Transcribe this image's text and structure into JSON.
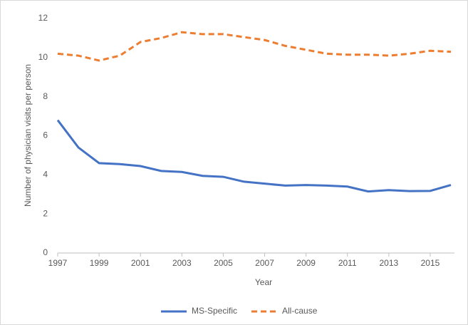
{
  "chart_data": {
    "type": "line",
    "x_label": "Year",
    "y_label": "Number of physician visits per person",
    "x": [
      1997,
      1998,
      1999,
      2000,
      2001,
      2002,
      2003,
      2004,
      2005,
      2006,
      2007,
      2008,
      2009,
      2010,
      2011,
      2012,
      2013,
      2014,
      2015,
      2016
    ],
    "series": [
      {
        "name": "MS-Specific",
        "color": "#4472c4",
        "style": "solid",
        "values": [
          6.8,
          5.4,
          4.6,
          4.55,
          4.45,
          4.2,
          4.15,
          3.95,
          3.9,
          3.65,
          3.55,
          3.45,
          3.48,
          3.45,
          3.4,
          3.15,
          3.22,
          3.17,
          3.18,
          3.48
        ]
      },
      {
        "name": "All-cause",
        "color": "#ed7d31",
        "style": "dashed",
        "values": [
          10.2,
          10.1,
          9.85,
          10.1,
          10.8,
          11.0,
          11.3,
          11.2,
          11.2,
          11.05,
          10.9,
          10.6,
          10.4,
          10.2,
          10.15,
          10.15,
          10.1,
          10.2,
          10.35,
          10.3
        ]
      }
    ],
    "xlim": [
      1997,
      2016
    ],
    "xticks": [
      1997,
      1999,
      2001,
      2003,
      2005,
      2007,
      2009,
      2011,
      2013,
      2015
    ],
    "ylim": [
      0,
      12
    ],
    "yticks": [
      0,
      2,
      4,
      6,
      8,
      10,
      12
    ],
    "grid": false,
    "legend": "bottom"
  }
}
